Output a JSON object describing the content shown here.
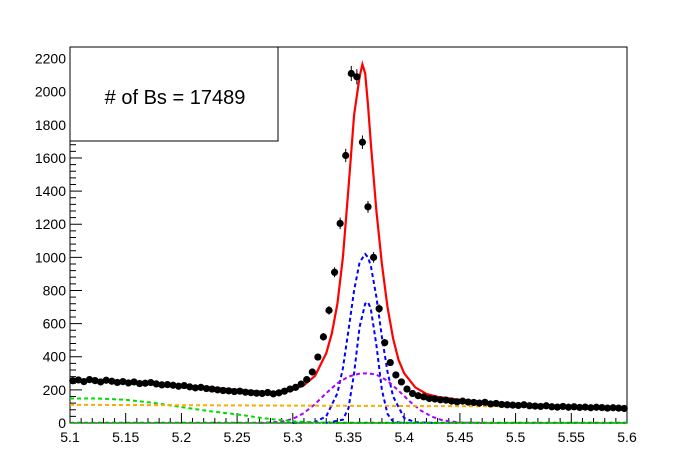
{
  "chart_data": {
    "type": "scatter",
    "title": "",
    "xlabel": "",
    "ylabel": "",
    "xlim": [
      5.1,
      5.6
    ],
    "ylim": [
      0,
      2270
    ],
    "x_ticks": [
      "5.1",
      "5.15",
      "5.2",
      "5.25",
      "5.3",
      "5.35",
      "5.4",
      "5.45",
      "5.5",
      "5.55",
      "5.6"
    ],
    "x_tick_values": [
      5.1,
      5.15,
      5.2,
      5.25,
      5.3,
      5.35,
      5.4,
      5.45,
      5.5,
      5.55,
      5.6
    ],
    "y_ticks": [
      "0",
      "200",
      "400",
      "600",
      "800",
      "1000",
      "1200",
      "1400",
      "1600",
      "1800",
      "2000",
      "2200"
    ],
    "y_tick_values": [
      0,
      200,
      400,
      600,
      800,
      1000,
      1200,
      1400,
      1600,
      1800,
      2000,
      2200
    ],
    "annotation": "# of Bs = 17489",
    "legend_placement": "top-left",
    "grid": false,
    "data_points": {
      "x": [
        5.1025,
        5.1075,
        5.1125,
        5.1175,
        5.1225,
        5.1275,
        5.1325,
        5.1375,
        5.1425,
        5.1475,
        5.1525,
        5.1575,
        5.1625,
        5.1675,
        5.1725,
        5.1775,
        5.1825,
        5.1875,
        5.1925,
        5.1975,
        5.2025,
        5.2075,
        5.2125,
        5.2175,
        5.2225,
        5.2275,
        5.2325,
        5.2375,
        5.2425,
        5.2475,
        5.2525,
        5.2575,
        5.2625,
        5.2675,
        5.2725,
        5.2775,
        5.2825,
        5.2875,
        5.2925,
        5.2975,
        5.3025,
        5.3075,
        5.3125,
        5.3175,
        5.3225,
        5.3275,
        5.3325,
        5.3375,
        5.3425,
        5.3475,
        5.3525,
        5.3575,
        5.3625,
        5.3675,
        5.3725,
        5.3775,
        5.3825,
        5.3875,
        5.3925,
        5.3975,
        5.4025,
        5.4075,
        5.4125,
        5.4175,
        5.4225,
        5.4275,
        5.4325,
        5.4375,
        5.4425,
        5.4475,
        5.4525,
        5.4575,
        5.4625,
        5.4675,
        5.4725,
        5.4775,
        5.4825,
        5.4875,
        5.4925,
        5.4975,
        5.5025,
        5.5075,
        5.5125,
        5.5175,
        5.5225,
        5.5275,
        5.5325,
        5.5375,
        5.5425,
        5.5475,
        5.5525,
        5.5575,
        5.5625,
        5.5675,
        5.5725,
        5.5775,
        5.5825,
        5.5875,
        5.5925,
        5.5975
      ],
      "y": [
        255,
        260,
        250,
        262,
        256,
        248,
        258,
        252,
        245,
        250,
        242,
        248,
        238,
        240,
        244,
        236,
        230,
        232,
        228,
        222,
        226,
        218,
        212,
        215,
        208,
        205,
        200,
        196,
        194,
        190,
        192,
        186,
        183,
        180,
        178,
        184,
        176,
        182,
        192,
        205,
        215,
        235,
        262,
        308,
        398,
        520,
        680,
        910,
        1205,
        1615,
        2110,
        2090,
        1695,
        1305,
        1000,
        690,
        485,
        365,
        290,
        248,
        205,
        178,
        165,
        158,
        148,
        145,
        140,
        138,
        132,
        128,
        132,
        126,
        124,
        120,
        125,
        115,
        118,
        112,
        110,
        108,
        106,
        110,
        104,
        102,
        100,
        104,
        98,
        96,
        100,
        95,
        98,
        94,
        96,
        92,
        95,
        93,
        90,
        92,
        90,
        88
      ],
      "y_err": [
        16,
        16,
        16,
        16,
        16,
        16,
        16,
        16,
        16,
        16,
        16,
        16,
        15,
        15,
        15,
        15,
        15,
        15,
        15,
        15,
        15,
        15,
        15,
        15,
        14,
        14,
        14,
        14,
        14,
        14,
        14,
        14,
        14,
        13,
        13,
        14,
        13,
        13,
        14,
        14,
        15,
        15,
        16,
        18,
        20,
        23,
        26,
        30,
        35,
        40,
        46,
        46,
        41,
        36,
        32,
        26,
        22,
        19,
        17,
        16,
        14,
        13,
        13,
        13,
        12,
        12,
        12,
        12,
        11,
        11,
        11,
        11,
        11,
        11,
        11,
        11,
        11,
        11,
        10,
        10,
        10,
        10,
        10,
        10,
        10,
        10,
        10,
        10,
        10,
        10,
        10,
        10,
        10,
        10,
        10,
        10,
        10,
        10,
        10,
        9
      ]
    },
    "series": [
      {
        "name": "",
        "kind": "total fit",
        "color": "#ff0000",
        "style": "solid",
        "x": [
          5.1,
          5.125,
          5.15,
          5.175,
          5.2,
          5.225,
          5.25,
          5.275,
          5.29,
          5.3,
          5.31,
          5.32,
          5.33,
          5.335,
          5.34,
          5.345,
          5.35,
          5.355,
          5.36,
          5.3625,
          5.365,
          5.3675,
          5.37,
          5.375,
          5.38,
          5.385,
          5.39,
          5.395,
          5.4,
          5.41,
          5.42,
          5.43,
          5.45,
          5.475,
          5.5,
          5.525,
          5.55,
          5.575,
          5.6
        ],
        "y": [
          258,
          255,
          248,
          240,
          228,
          215,
          200,
          188,
          184,
          200,
          228,
          285,
          420,
          540,
          720,
          1000,
          1420,
          1860,
          2090,
          2165,
          2110,
          1920,
          1690,
          1280,
          960,
          700,
          510,
          380,
          300,
          215,
          175,
          158,
          140,
          126,
          115,
          107,
          101,
          96,
          92
        ]
      },
      {
        "name": "",
        "kind": "signal gaussian 1",
        "color": "#0000ff",
        "style": "dashed",
        "x": [
          5.3,
          5.32,
          5.33,
          5.34,
          5.345,
          5.35,
          5.355,
          5.36,
          5.365,
          5.3675,
          5.37,
          5.375,
          5.38,
          5.385,
          5.39,
          5.4,
          5.41,
          5.43
        ],
        "y": [
          0,
          6,
          40,
          180,
          330,
          560,
          800,
          970,
          1020,
          1000,
          950,
          760,
          520,
          310,
          160,
          30,
          4,
          0
        ]
      },
      {
        "name": "",
        "kind": "signal gaussian 2",
        "color": "#0000ff",
        "style": "dashed",
        "x": [
          5.33,
          5.345,
          5.35,
          5.355,
          5.36,
          5.365,
          5.3675,
          5.37,
          5.375,
          5.38,
          5.385,
          5.39,
          5.4
        ],
        "y": [
          0,
          20,
          90,
          300,
          580,
          720,
          730,
          690,
          470,
          200,
          55,
          8,
          0
        ]
      },
      {
        "name": "",
        "kind": "wide gaussian",
        "color": "#aa00ff",
        "style": "dashed",
        "x": [
          5.27,
          5.29,
          5.3,
          5.31,
          5.32,
          5.33,
          5.34,
          5.35,
          5.36,
          5.3675,
          5.375,
          5.385,
          5.395,
          5.405,
          5.415,
          5.425,
          5.435,
          5.45,
          5.47
        ],
        "y": [
          0,
          8,
          25,
          60,
          115,
          180,
          240,
          280,
          298,
          300,
          292,
          255,
          195,
          130,
          75,
          38,
          15,
          3,
          0
        ]
      },
      {
        "name": "",
        "kind": "partial reco",
        "color": "#00dd00",
        "style": "dashed",
        "x": [
          5.1,
          5.125,
          5.15,
          5.175,
          5.2,
          5.225,
          5.25,
          5.275,
          5.3,
          5.32,
          5.34,
          5.36,
          5.6
        ],
        "y": [
          148,
          148,
          140,
          122,
          96,
          72,
          52,
          28,
          10,
          3,
          0,
          0,
          0
        ]
      },
      {
        "name": "",
        "kind": "combinatorial",
        "color": "#ffaa00",
        "style": "dashed",
        "x": [
          5.1,
          5.6
        ],
        "y": [
          110,
          98
        ]
      },
      {
        "name": "",
        "kind": "baseline",
        "color": "#00aa00",
        "style": "dashed",
        "x": [
          5.1,
          5.6
        ],
        "y": [
          2,
          2
        ]
      }
    ]
  }
}
